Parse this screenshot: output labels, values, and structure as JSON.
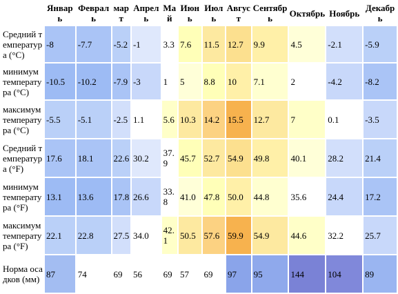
{
  "months": [
    "Январь",
    "Февраль",
    "март",
    "Апрель",
    "Май",
    "Июнь",
    "Июль",
    "Август",
    "Сентябрь",
    "Октябрь",
    "Ноябрь",
    "Декабрь"
  ],
  "rows": [
    {
      "label": "Средний температура (°C)",
      "cells": [
        {
          "text": "-8",
          "color": "#aac4f6"
        },
        {
          "text": "-7.7",
          "color": "#aac4f6"
        },
        {
          "text": "-5.2",
          "color": "#bad0f8"
        },
        {
          "text": "-1",
          "color": "#dfe8fc"
        },
        {
          "text": "3.3",
          "color": "#ffffff"
        },
        {
          "text": "7.6",
          "color": "#ffffb8"
        },
        {
          "text": "11.5",
          "color": "#fde9a0"
        },
        {
          "text": "12.7",
          "color": "#fce08f"
        },
        {
          "text": "9.9",
          "color": "#fff0a8"
        },
        {
          "text": "4.5",
          "color": "#ffffd8"
        },
        {
          "text": "-2.1",
          "color": "#d2dffb"
        },
        {
          "text": "-5.9",
          "color": "#bad0f8"
        }
      ]
    },
    {
      "label": "минимум температура (°C)",
      "cells": [
        {
          "text": "-10.5",
          "color": "#9dbbf4"
        },
        {
          "text": "-10.2",
          "color": "#9dbbf4"
        },
        {
          "text": "-7.9",
          "color": "#aac4f6"
        },
        {
          "text": "-3",
          "color": "#c8d8fa"
        },
        {
          "text": "1",
          "color": "#ffffff"
        },
        {
          "text": "5",
          "color": "#ffffd8"
        },
        {
          "text": "8.8",
          "color": "#ffffb8"
        },
        {
          "text": "10",
          "color": "#fff0a8"
        },
        {
          "text": "7.1",
          "color": "#ffffd0"
        },
        {
          "text": "2",
          "color": "#ffffff"
        },
        {
          "text": "-4.2",
          "color": "#c8d8fa"
        },
        {
          "text": "-8.2",
          "color": "#aac4f6"
        }
      ]
    },
    {
      "label": "максимум температура (°C)",
      "cells": [
        {
          "text": "-5.5",
          "color": "#bad0f8"
        },
        {
          "text": "-5.1",
          "color": "#bad0f8"
        },
        {
          "text": "-2.5",
          "color": "#d2dffb"
        },
        {
          "text": "1.1",
          "color": "#ffffff"
        },
        {
          "text": "5.6",
          "color": "#ffffc8"
        },
        {
          "text": "10.3",
          "color": "#fde9a0"
        },
        {
          "text": "14.2",
          "color": "#fcd282"
        },
        {
          "text": "15.5",
          "color": "#f7b24e"
        },
        {
          "text": "12.7",
          "color": "#fde9a0"
        },
        {
          "text": "7",
          "color": "#ffffc8"
        },
        {
          "text": "0.1",
          "color": "#ffffff"
        },
        {
          "text": "-3.5",
          "color": "#c8d8fa"
        }
      ]
    },
    {
      "label": "Средний температура (°F)",
      "cells": [
        {
          "text": "17.6",
          "color": "#aac4f6"
        },
        {
          "text": "18.1",
          "color": "#aac4f6"
        },
        {
          "text": "22.6",
          "color": "#bad0f8"
        },
        {
          "text": "30.2",
          "color": "#dfe8fc"
        },
        {
          "text": "37.9",
          "color": "#ffffff"
        },
        {
          "text": "45.7",
          "color": "#ffffb8"
        },
        {
          "text": "52.7",
          "color": "#fde9a0"
        },
        {
          "text": "54.9",
          "color": "#fce08f"
        },
        {
          "text": "49.8",
          "color": "#fff0a8"
        },
        {
          "text": "40.1",
          "color": "#ffffd8"
        },
        {
          "text": "28.2",
          "color": "#d2dffb"
        },
        {
          "text": "21.4",
          "color": "#bad0f8"
        }
      ]
    },
    {
      "label": "минимум температура (°F)",
      "cells": [
        {
          "text": "13.1",
          "color": "#9dbbf4"
        },
        {
          "text": "13.6",
          "color": "#9dbbf4"
        },
        {
          "text": "17.8",
          "color": "#aac4f6"
        },
        {
          "text": "26.6",
          "color": "#c8d8fa"
        },
        {
          "text": "33.8",
          "color": "#ffffff"
        },
        {
          "text": "41.0",
          "color": "#ffffd8"
        },
        {
          "text": "47.8",
          "color": "#ffffb8"
        },
        {
          "text": "50.0",
          "color": "#fff0a8"
        },
        {
          "text": "44.8",
          "color": "#ffffd0"
        },
        {
          "text": "35.6",
          "color": "#ffffff"
        },
        {
          "text": "24.4",
          "color": "#c8d8fa"
        },
        {
          "text": "17.2",
          "color": "#aac4f6"
        }
      ]
    },
    {
      "label": "максимум температура (°F)",
      "cells": [
        {
          "text": "22.1",
          "color": "#bad0f8"
        },
        {
          "text": "22.8",
          "color": "#bad0f8"
        },
        {
          "text": "27.5",
          "color": "#d2dffb"
        },
        {
          "text": "34.0",
          "color": "#ffffff"
        },
        {
          "text": "42.1",
          "color": "#ffffc8"
        },
        {
          "text": "50.5",
          "color": "#fde9a0"
        },
        {
          "text": "57.6",
          "color": "#fcd282"
        },
        {
          "text": "59.9",
          "color": "#f7b24e"
        },
        {
          "text": "54.9",
          "color": "#fde9a0"
        },
        {
          "text": "44.6",
          "color": "#ffffc8"
        },
        {
          "text": "32.2",
          "color": "#ffffff"
        },
        {
          "text": "25.7",
          "color": "#c8d8fa"
        }
      ]
    },
    {
      "label": "Норма осадков (мм)",
      "cells": [
        {
          "text": "87",
          "color": "#a3bdf2"
        },
        {
          "text": "74",
          "color": "#ffffff"
        },
        {
          "text": "69",
          "color": "#ffffff"
        },
        {
          "text": "56",
          "color": "#ffffff"
        },
        {
          "text": "69",
          "color": "#ffffff"
        },
        {
          "text": "57",
          "color": "#ffffff"
        },
        {
          "text": "69",
          "color": "#ffffff"
        },
        {
          "text": "97",
          "color": "#8aa4ea"
        },
        {
          "text": "95",
          "color": "#8fa9ec"
        },
        {
          "text": "144",
          "color": "#7a82d6"
        },
        {
          "text": "104",
          "color": "#8088da"
        },
        {
          "text": "89",
          "color": "#9ab5f1"
        }
      ]
    }
  ]
}
